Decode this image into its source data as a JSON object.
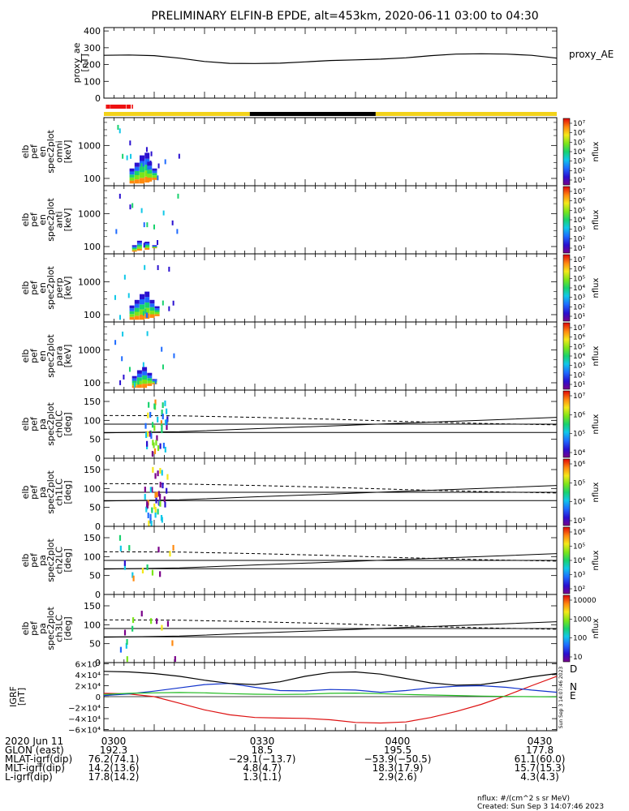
{
  "title": "PRELIMINARY ELFIN-B EPDE, alt=453km, 2020-06-11 03:00 to 04:30",
  "colors": {
    "axis": "#000000",
    "ae_line": "#000000",
    "bar_red": "#ee1111",
    "bar_yellow": "#f2d21b",
    "bar_black": "#000000",
    "comp_D": "#dd1111",
    "comp_N": "#1133cc",
    "comp_E": "#22bb22",
    "comp_total": "#000000"
  },
  "bars": {
    "red_segments": [
      [
        0.4,
        0.8
      ],
      [
        0.8,
        1.25
      ],
      [
        1.3,
        4.4
      ],
      [
        4.5,
        5.35
      ],
      [
        5.55,
        5.8
      ]
    ],
    "yellow_segments": [
      [
        0,
        29
      ],
      [
        54,
        90
      ]
    ],
    "black_segments": [
      [
        29,
        54
      ]
    ]
  },
  "panels": {
    "ae": {
      "ylabel_lines": [
        "proxy_ae",
        "[nT]"
      ],
      "series_label": "proxy_AE",
      "yticks": [
        "0",
        "100",
        "200",
        "300",
        "400"
      ],
      "ylim": [
        0,
        420
      ]
    },
    "spec": [
      {
        "ylabel_lines": [
          "elb",
          "pef",
          "en",
          "spec2plot",
          "omni",
          "[keV]"
        ],
        "yticks": [
          "100",
          "1000"
        ],
        "zlabel": "nflux",
        "zticks": [
          "10¹",
          "10²",
          "10³",
          "10⁴",
          "10⁵",
          "10⁶",
          "10⁷"
        ]
      },
      {
        "ylabel_lines": [
          "elb",
          "pef",
          "en",
          "spec2plot",
          "anti",
          "[keV]"
        ],
        "yticks": [
          "100",
          "1000"
        ],
        "zlabel": "nflux",
        "zticks": [
          "10¹",
          "10²",
          "10³",
          "10⁴",
          "10⁵",
          "10⁶",
          "10⁷"
        ]
      },
      {
        "ylabel_lines": [
          "elb",
          "pef",
          "en",
          "spec2plot",
          "perp",
          "[keV]"
        ],
        "yticks": [
          "100",
          "1000"
        ],
        "zlabel": "nflux",
        "zticks": [
          "10¹",
          "10²",
          "10³",
          "10⁴",
          "10⁵",
          "10⁶",
          "10⁷"
        ]
      },
      {
        "ylabel_lines": [
          "elb",
          "pef",
          "en",
          "spec2plot",
          "para",
          "[keV]"
        ],
        "yticks": [
          "100",
          "1000"
        ],
        "zlabel": "nflux",
        "zticks": [
          "10¹",
          "10²",
          "10³",
          "10⁴",
          "10⁵",
          "10⁶",
          "10⁷"
        ]
      }
    ],
    "pa": [
      {
        "ylabel_lines": [
          "elb",
          "pef",
          "pa",
          "spec2plot",
          "ch0LC",
          "[deg]"
        ],
        "yticks": [
          "0",
          "50",
          "100",
          "150"
        ],
        "zlabel": "nflux",
        "zticks": [
          "10⁴",
          "10⁵",
          "10⁶",
          "10⁷"
        ]
      },
      {
        "ylabel_lines": [
          "elb",
          "pef",
          "pa",
          "spec2plot",
          "ch1LC",
          "[deg]"
        ],
        "yticks": [
          "0",
          "50",
          "100",
          "150"
        ],
        "zlabel": "nflux",
        "zticks": [
          "10³",
          "10⁴",
          "10⁵",
          "10⁶"
        ]
      },
      {
        "ylabel_lines": [
          "elb",
          "pef",
          "pa",
          "spec2plot",
          "ch2LC",
          "[deg]"
        ],
        "yticks": [
          "0",
          "50",
          "100",
          "150"
        ],
        "zlabel": "nflux",
        "zticks": [
          "10²",
          "10³",
          "10⁴",
          "10⁵",
          "10⁶"
        ]
      },
      {
        "ylabel_lines": [
          "elb",
          "pef",
          "pa",
          "spec2plot",
          "ch3LC",
          "[deg]"
        ],
        "yticks": [
          "0",
          "50",
          "100",
          "150"
        ],
        "zlabel": "nflux",
        "zticks": [
          "10",
          "100",
          "1000",
          "10000"
        ]
      }
    ],
    "igrf": {
      "ylabel_lines": [
        "IGRF",
        "[nT]"
      ],
      "yticks": [
        "−6×10⁴",
        "−4×10⁴",
        "−2×10⁴",
        "0",
        "2×10⁴",
        "4×10⁴",
        "6×10⁴"
      ],
      "legend": [
        "D",
        "N",
        "E"
      ],
      "side_note": "Sun Sep  3 14:07:46 2023"
    }
  },
  "chart_data": {
    "type": "line",
    "title": "PRELIMINARY ELFIN-B EPDE, alt=453km, 2020-06-11 03:00 to 04:30",
    "xlabel": "",
    "xlim_minutes": [
      0,
      90
    ],
    "ae_series": {
      "name": "proxy_AE",
      "x": [
        0,
        5,
        10,
        15,
        20,
        25,
        30,
        35,
        40,
        45,
        50,
        55,
        60,
        65,
        70,
        75,
        80,
        85,
        90
      ],
      "y": [
        255,
        257,
        253,
        238,
        218,
        207,
        206,
        208,
        216,
        224,
        228,
        232,
        240,
        253,
        262,
        264,
        262,
        255,
        238
      ]
    },
    "igrf_series": [
      {
        "name": "D",
        "x": [
          0,
          5,
          10,
          15,
          20,
          25,
          30,
          35,
          40,
          45,
          50,
          55,
          60,
          65,
          70,
          75,
          80,
          85,
          90
        ],
        "y": [
          6000,
          5000,
          0,
          -12000,
          -24000,
          -33000,
          -38000,
          -39000,
          -39500,
          -42000,
          -47000,
          -48000,
          -46000,
          -38000,
          -27000,
          -14000,
          2000,
          20000,
          37000
        ]
      },
      {
        "name": "N",
        "x": [
          0,
          5,
          10,
          15,
          20,
          25,
          30,
          35,
          40,
          45,
          50,
          55,
          60,
          65,
          70,
          75,
          80,
          85,
          90
        ],
        "y": [
          2000,
          5000,
          10000,
          16000,
          22000,
          24000,
          17000,
          11000,
          10500,
          13000,
          12000,
          8000,
          11000,
          16000,
          19000,
          20000,
          17000,
          12000,
          8000
        ]
      },
      {
        "name": "E",
        "x": [
          0,
          5,
          10,
          15,
          20,
          25,
          30,
          35,
          40,
          45,
          50,
          55,
          60,
          65,
          70,
          75,
          80,
          85,
          90
        ],
        "y": [
          4000,
          6000,
          7000,
          7500,
          7000,
          5500,
          4500,
          4000,
          4500,
          6000,
          6500,
          5500,
          4000,
          3000,
          2000,
          1000,
          500,
          0,
          -500
        ]
      },
      {
        "name": "",
        "x": [
          0,
          5,
          10,
          15,
          20,
          25,
          30,
          35,
          40,
          45,
          50,
          55,
          60,
          65,
          70,
          75,
          80,
          85,
          90
        ],
        "y": [
          46000,
          45000,
          42000,
          37000,
          30000,
          24000,
          22000,
          27000,
          37000,
          44000,
          45000,
          41000,
          33000,
          25000,
          21000,
          22000,
          28000,
          36000,
          42000
        ]
      }
    ],
    "spectrogram_time_range_minutes": [
      0,
      16
    ],
    "pa_reference_lines_deg": [
      90,
      68
    ],
    "pa_dashed_deg": [
      113,
      112,
      108,
      103,
      97,
      92,
      88
    ],
    "pa_solid_deg": [
      67,
      70,
      78,
      85,
      93,
      100,
      108
    ],
    "spectra": {
      "omni": {
        "x": [
          5.5,
          6.5,
          7.5,
          8.5,
          9,
          10
        ],
        "lo": [
          70,
          70,
          70,
          75,
          80,
          90
        ],
        "hi": [
          200,
          300,
          500,
          600,
          320,
          200
        ]
      },
      "anti": {
        "x": [
          6,
          7,
          8.5,
          10
        ],
        "lo": [
          70,
          75,
          80,
          90
        ],
        "hi": [
          110,
          150,
          140,
          110
        ]
      },
      "perp": {
        "x": [
          5.5,
          6.5,
          7.5,
          8.5,
          9.5,
          10.5
        ],
        "lo": [
          70,
          70,
          70,
          75,
          80,
          90
        ],
        "hi": [
          190,
          280,
          420,
          500,
          280,
          180
        ]
      },
      "para": {
        "x": [
          6,
          7,
          8,
          9,
          10
        ],
        "lo": [
          70,
          70,
          70,
          80,
          90
        ],
        "hi": [
          160,
          240,
          300,
          200,
          130
        ]
      }
    },
    "footer": {
      "rows": [
        {
          "label": "2020 Jun 11",
          "values": [
            "0300",
            "0330",
            "0400",
            "0430"
          ]
        },
        {
          "label": "GLON (east)",
          "values": [
            "192.3",
            "18.5",
            "195.5",
            "177.8"
          ]
        },
        {
          "label": "MLAT-igrf(dip)",
          "values": [
            "76.2(74.1)",
            "−29.1(−13.7)",
            "−53.9(−50.5)",
            "61.1(60.0)"
          ]
        },
        {
          "label": "MLT-igrf(dip)",
          "values": [
            "14.2(13.6)",
            "4.8(4.7)",
            "18.3(17.9)",
            "15.7(15.3)"
          ]
        },
        {
          "label": "L-igrf(dip)",
          "values": [
            "17.8(14.2)",
            "1.3(1.1)",
            "2.9(2.6)",
            "4.3(4.3)"
          ]
        }
      ],
      "units_note": "nflux: #/(cm^2 s sr MeV)",
      "created_note": "Created: Sun Sep  3 14:07:46 2023"
    }
  }
}
